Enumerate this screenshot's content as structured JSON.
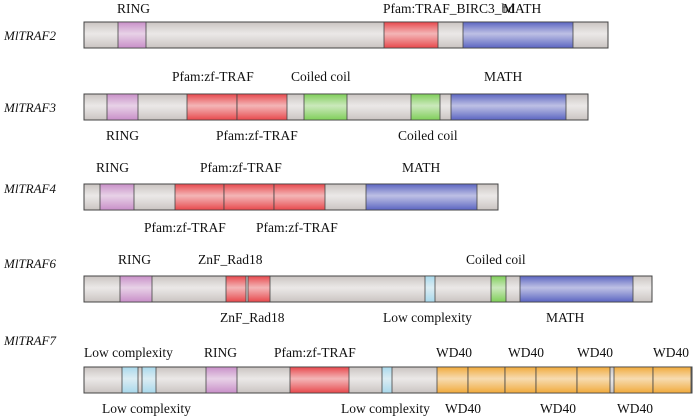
{
  "colors": {
    "protein_bar": "#c9c3c0",
    "RING": "#c98fc9",
    "TRAF": "#e8474b",
    "MATH": "#5a64c2",
    "coiled": "#7fcf58",
    "lowcomplex": "#a9d9ec",
    "WD40": "#f2aa3a"
  },
  "proteins": [
    {
      "name": "MlTRAF2",
      "domains": [
        {
          "type": "RING"
        },
        {
          "type": "TRAF"
        },
        {
          "type": "MATH"
        }
      ],
      "labels": [
        {
          "text": "RING"
        },
        {
          "text": "Pfam:TRAF_BIRC3_bd"
        },
        {
          "text": "MATH"
        }
      ]
    },
    {
      "name": "MlTRAF3",
      "domains": [
        {
          "type": "RING"
        },
        {
          "type": "TRAF"
        },
        {
          "type": "TRAF"
        },
        {
          "type": "coiled"
        },
        {
          "type": "coiled"
        },
        {
          "type": "MATH"
        }
      ],
      "labels": [
        {
          "text": "Pfam:zf-TRAF"
        },
        {
          "text": "Coiled coil"
        },
        {
          "text": "MATH"
        },
        {
          "text": "RING"
        },
        {
          "text": "Pfam:zf-TRAF"
        },
        {
          "text": "Coiled coil"
        }
      ]
    },
    {
      "name": "MlTRAF4",
      "domains": [
        {
          "type": "RING"
        },
        {
          "type": "TRAF"
        },
        {
          "type": "TRAF"
        },
        {
          "type": "TRAF"
        },
        {
          "type": "MATH"
        }
      ],
      "labels": [
        {
          "text": "RING"
        },
        {
          "text": "Pfam:zf-TRAF"
        },
        {
          "text": "MATH"
        },
        {
          "text": "Pfam:zf-TRAF"
        },
        {
          "text": "Pfam:zf-TRAF"
        }
      ]
    },
    {
      "name": "MlTRAF6",
      "domains": [
        {
          "type": "RING"
        },
        {
          "type": "TRAF"
        },
        {
          "type": "TRAF"
        },
        {
          "type": "lowcomplex"
        },
        {
          "type": "coiled"
        },
        {
          "type": "MATH"
        }
      ],
      "labels": [
        {
          "text": "RING"
        },
        {
          "text": "ZnF_Rad18"
        },
        {
          "text": "Coiled coil"
        },
        {
          "text": "ZnF_Rad18"
        },
        {
          "text": "Low complexity"
        },
        {
          "text": "MATH"
        }
      ]
    },
    {
      "name": "MlTRAF7",
      "domains": [
        {
          "type": "lowcomplex"
        },
        {
          "type": "lowcomplex"
        },
        {
          "type": "RING"
        },
        {
          "type": "TRAF"
        },
        {
          "type": "lowcomplex"
        },
        {
          "type": "WD40"
        },
        {
          "type": "WD40"
        },
        {
          "type": "WD40"
        },
        {
          "type": "WD40"
        },
        {
          "type": "WD40"
        },
        {
          "type": "WD40"
        },
        {
          "type": "WD40"
        }
      ],
      "labels": [
        {
          "text": "Low complexity"
        },
        {
          "text": "RING"
        },
        {
          "text": "Pfam:zf-TRAF"
        },
        {
          "text": "WD40"
        },
        {
          "text": "WD40"
        },
        {
          "text": "WD40"
        },
        {
          "text": "WD40"
        },
        {
          "text": "Low complexity"
        },
        {
          "text": "Low complexity"
        },
        {
          "text": "WD40"
        },
        {
          "text": "WD40"
        },
        {
          "text": "WD40"
        }
      ]
    }
  ]
}
